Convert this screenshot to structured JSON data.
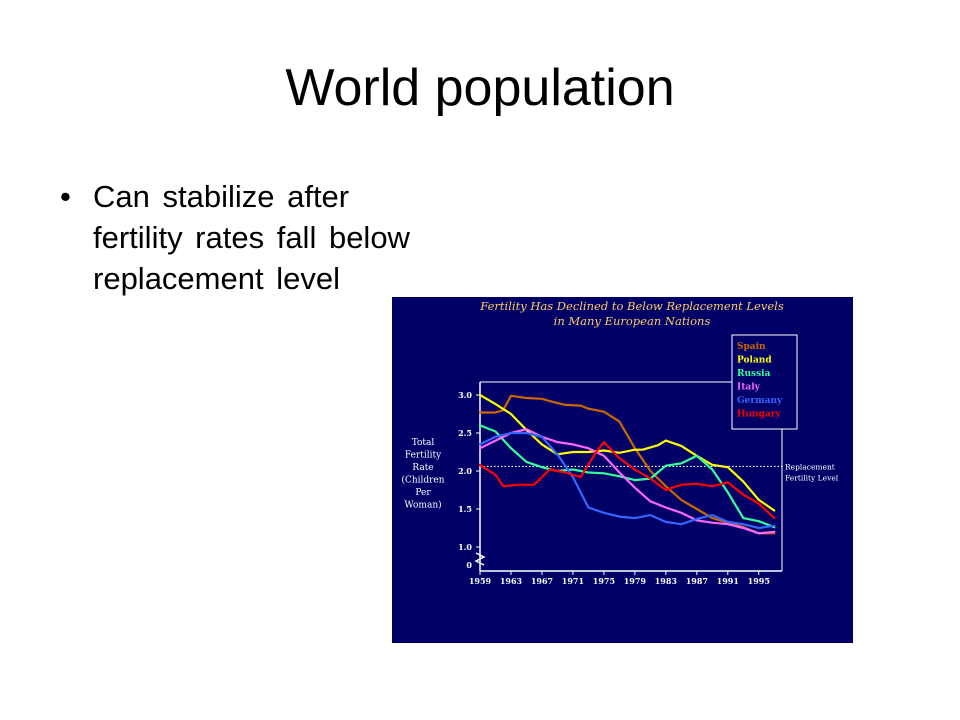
{
  "slide": {
    "title": "World population",
    "bullets": [
      "Can stabilize after fertility rates fall below replacement level"
    ]
  },
  "chart_data": {
    "type": "line",
    "title": "Fertility Has Declined to Below Replacement Levels in Many European Nations",
    "title_lines": [
      "Fertility Has Declined to Below Replacement Levels",
      "in Many European Nations"
    ],
    "ylabel": "Total Fertility Rate (Children Per Woman)",
    "ylabel_lines": [
      "Total",
      "Fertility",
      "Rate",
      "(Children",
      "Per",
      "Woman)"
    ],
    "xlabel": "",
    "xlim": [
      1959,
      1998
    ],
    "ylim": [
      0.9,
      3.15
    ],
    "x_ticks": [
      1959,
      1963,
      1967,
      1971,
      1975,
      1979,
      1983,
      1987,
      1991,
      1995
    ],
    "y_ticks": [
      {
        "value": 3.0,
        "label": "3.0"
      },
      {
        "value": 2.5,
        "label": "2.5"
      },
      {
        "value": 2.0,
        "label": "2.0"
      },
      {
        "value": 1.5,
        "label": "1.5"
      },
      {
        "value": 1.0,
        "label": "1.0"
      }
    ],
    "y_zero_label": "0",
    "axis_break": true,
    "grid": false,
    "legend_position": "top-right",
    "background": "#000066",
    "reference_line": {
      "value": 2.06,
      "label_lines": [
        "Replacement",
        "Fertility Level"
      ],
      "style": "dotted",
      "color": "#ffffff"
    },
    "series": [
      {
        "name": "Spain",
        "color": "#cc6600",
        "points": [
          [
            1959,
            2.77
          ],
          [
            1961,
            2.77
          ],
          [
            1962,
            2.8
          ],
          [
            1963,
            2.99
          ],
          [
            1965,
            2.96
          ],
          [
            1967,
            2.95
          ],
          [
            1968,
            2.92
          ],
          [
            1970,
            2.87
          ],
          [
            1972,
            2.86
          ],
          [
            1973,
            2.82
          ],
          [
            1975,
            2.78
          ],
          [
            1977,
            2.65
          ],
          [
            1979,
            2.3
          ],
          [
            1981,
            2.0
          ],
          [
            1983,
            1.8
          ],
          [
            1985,
            1.62
          ],
          [
            1987,
            1.5
          ],
          [
            1989,
            1.38
          ],
          [
            1991,
            1.32
          ],
          [
            1993,
            1.26
          ],
          [
            1995,
            1.18
          ],
          [
            1997,
            1.18
          ]
        ]
      },
      {
        "name": "Poland",
        "color": "#ffff00",
        "points": [
          [
            1959,
            3.0
          ],
          [
            1961,
            2.88
          ],
          [
            1963,
            2.75
          ],
          [
            1965,
            2.54
          ],
          [
            1967,
            2.35
          ],
          [
            1969,
            2.22
          ],
          [
            1971,
            2.25
          ],
          [
            1973,
            2.25
          ],
          [
            1975,
            2.27
          ],
          [
            1977,
            2.24
          ],
          [
            1979,
            2.28
          ],
          [
            1980,
            2.28
          ],
          [
            1982,
            2.34
          ],
          [
            1983,
            2.4
          ],
          [
            1985,
            2.33
          ],
          [
            1987,
            2.2
          ],
          [
            1989,
            2.08
          ],
          [
            1991,
            2.05
          ],
          [
            1993,
            1.86
          ],
          [
            1995,
            1.62
          ],
          [
            1997,
            1.48
          ]
        ]
      },
      {
        "name": "Russia",
        "color": "#33ff99",
        "points": [
          [
            1959,
            2.6
          ],
          [
            1961,
            2.52
          ],
          [
            1963,
            2.3
          ],
          [
            1965,
            2.12
          ],
          [
            1967,
            2.05
          ],
          [
            1969,
            2.0
          ],
          [
            1971,
            2.02
          ],
          [
            1973,
            1.98
          ],
          [
            1975,
            1.97
          ],
          [
            1977,
            1.93
          ],
          [
            1979,
            1.88
          ],
          [
            1981,
            1.9
          ],
          [
            1983,
            2.07
          ],
          [
            1985,
            2.1
          ],
          [
            1987,
            2.2
          ],
          [
            1989,
            2.02
          ],
          [
            1991,
            1.72
          ],
          [
            1993,
            1.38
          ],
          [
            1995,
            1.34
          ],
          [
            1997,
            1.26
          ]
        ]
      },
      {
        "name": "Italy",
        "color": "#ff66ff",
        "points": [
          [
            1959,
            2.3
          ],
          [
            1961,
            2.4
          ],
          [
            1963,
            2.5
          ],
          [
            1965,
            2.55
          ],
          [
            1967,
            2.45
          ],
          [
            1969,
            2.38
          ],
          [
            1971,
            2.35
          ],
          [
            1973,
            2.3
          ],
          [
            1975,
            2.2
          ],
          [
            1977,
            1.98
          ],
          [
            1979,
            1.78
          ],
          [
            1981,
            1.6
          ],
          [
            1983,
            1.52
          ],
          [
            1985,
            1.45
          ],
          [
            1987,
            1.35
          ],
          [
            1989,
            1.32
          ],
          [
            1991,
            1.3
          ],
          [
            1993,
            1.25
          ],
          [
            1995,
            1.18
          ],
          [
            1997,
            1.2
          ]
        ]
      },
      {
        "name": "Germany",
        "color": "#3366ff",
        "points": [
          [
            1959,
            2.35
          ],
          [
            1961,
            2.45
          ],
          [
            1963,
            2.5
          ],
          [
            1965,
            2.5
          ],
          [
            1967,
            2.45
          ],
          [
            1969,
            2.22
          ],
          [
            1971,
            1.92
          ],
          [
            1973,
            1.52
          ],
          [
            1975,
            1.45
          ],
          [
            1977,
            1.4
          ],
          [
            1979,
            1.38
          ],
          [
            1981,
            1.42
          ],
          [
            1983,
            1.33
          ],
          [
            1985,
            1.3
          ],
          [
            1987,
            1.37
          ],
          [
            1989,
            1.42
          ],
          [
            1991,
            1.33
          ],
          [
            1993,
            1.3
          ],
          [
            1995,
            1.25
          ],
          [
            1997,
            1.28
          ]
        ]
      },
      {
        "name": "Hungary",
        "color": "#ff0000",
        "points": [
          [
            1959,
            2.08
          ],
          [
            1961,
            1.95
          ],
          [
            1962,
            1.8
          ],
          [
            1964,
            1.82
          ],
          [
            1966,
            1.82
          ],
          [
            1968,
            2.02
          ],
          [
            1970,
            1.98
          ],
          [
            1972,
            1.92
          ],
          [
            1974,
            2.25
          ],
          [
            1975,
            2.38
          ],
          [
            1977,
            2.17
          ],
          [
            1979,
            2.02
          ],
          [
            1981,
            1.9
          ],
          [
            1983,
            1.75
          ],
          [
            1985,
            1.82
          ],
          [
            1987,
            1.83
          ],
          [
            1989,
            1.8
          ],
          [
            1991,
            1.85
          ],
          [
            1993,
            1.69
          ],
          [
            1995,
            1.57
          ],
          [
            1997,
            1.38
          ]
        ]
      }
    ]
  }
}
